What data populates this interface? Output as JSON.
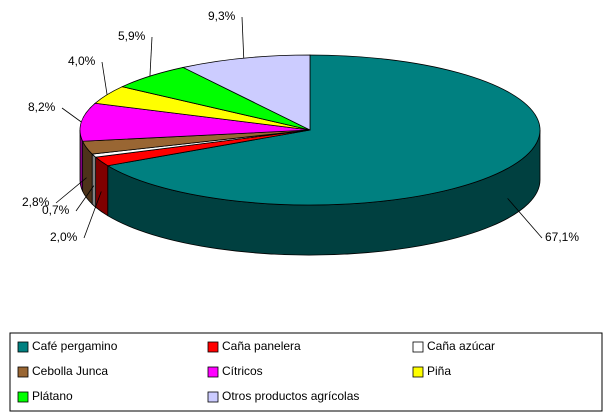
{
  "chart_data": {
    "type": "pie3d",
    "categories": [
      "Café pergamino",
      "Caña panelera",
      "Caña azúcar",
      "Cebolla Junca",
      "Cítricos",
      "Piña",
      "Plátano",
      "Otros productos agrícolas"
    ],
    "values": [
      67.1,
      2.0,
      0.7,
      2.8,
      8.2,
      4.0,
      5.9,
      9.3
    ],
    "value_labels": [
      "67,1%",
      "2,0%",
      "0,7%",
      "2,8%",
      "8,2%",
      "4,0%",
      "5,9%",
      "9,3%"
    ],
    "colors": [
      "#008080",
      "#ff0000",
      "#ffffff",
      "#996633",
      "#ff00ff",
      "#ffff00",
      "#00ff00",
      "#ccccff"
    ],
    "legend": "bottom"
  }
}
